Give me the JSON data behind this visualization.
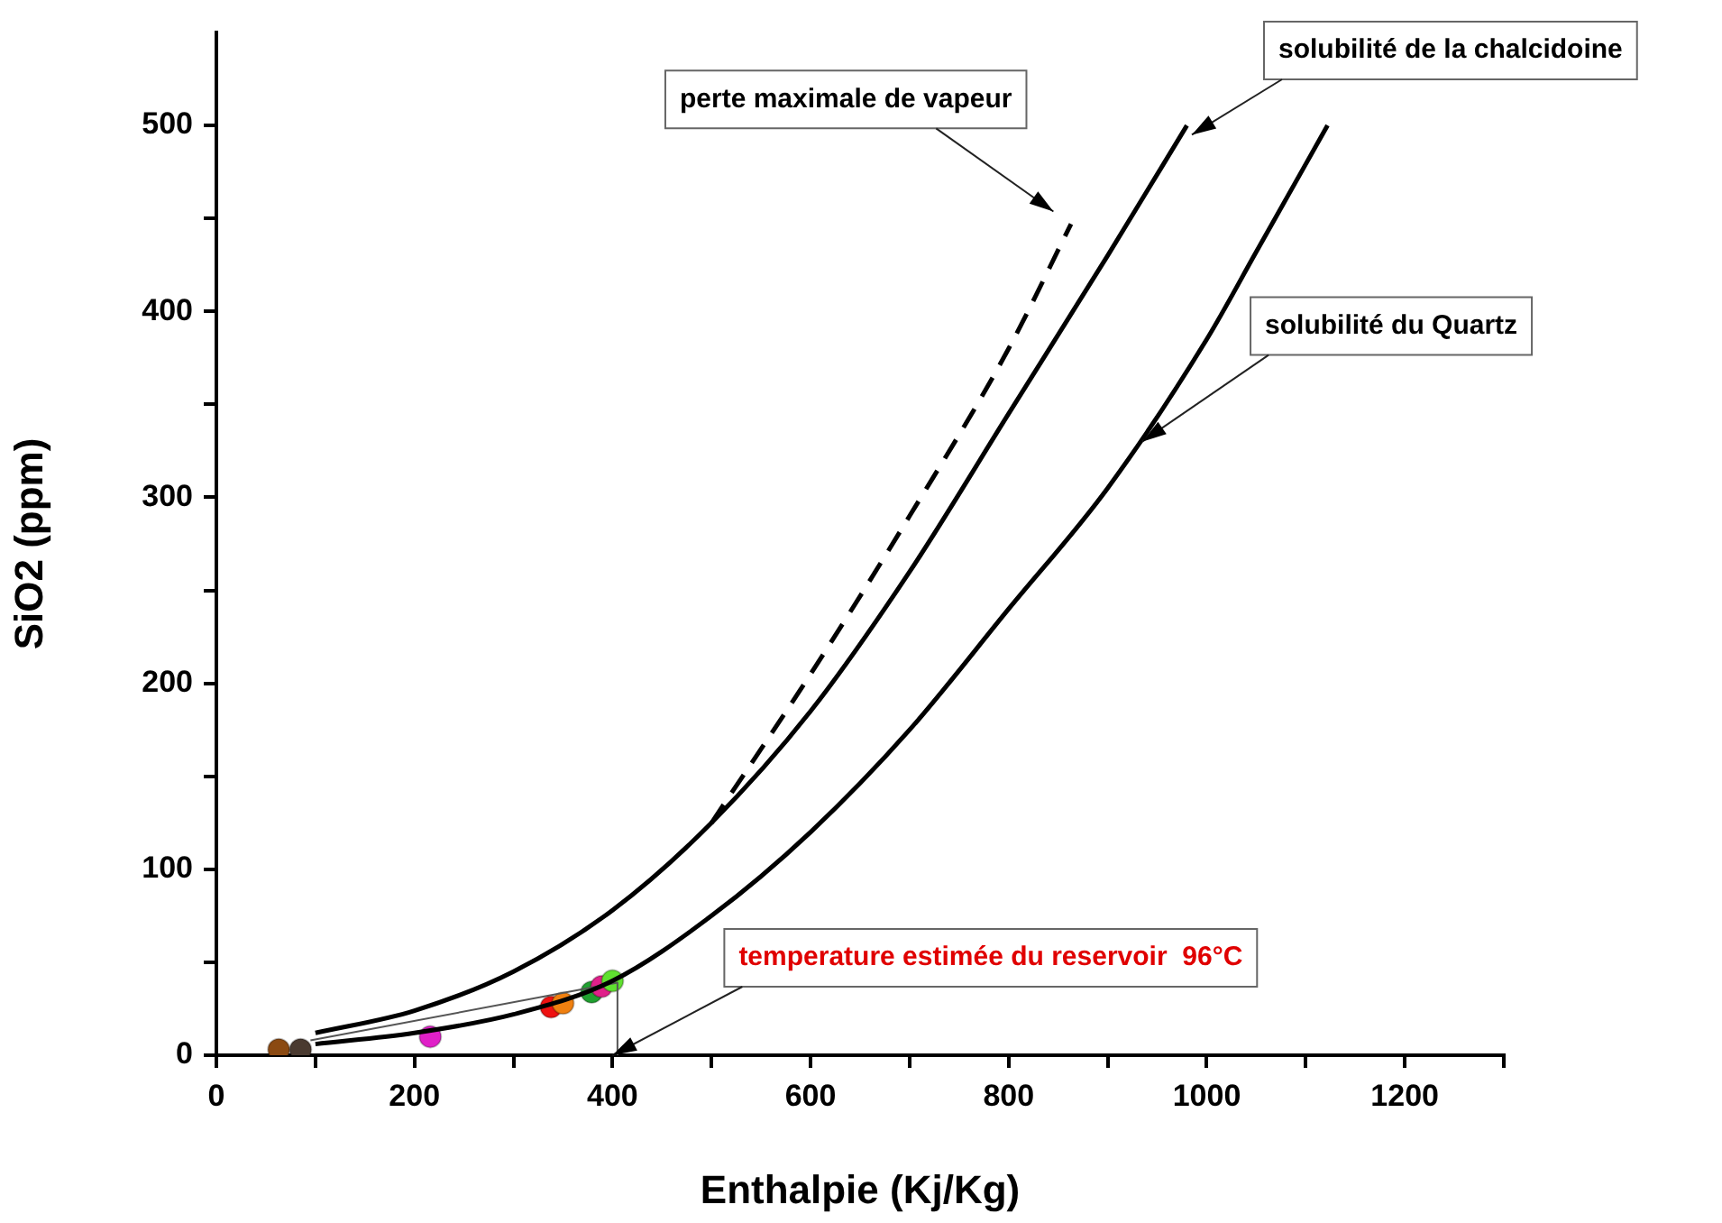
{
  "chart_data": {
    "type": "line",
    "xlabel": "Enthalpie (Kj/Kg)",
    "ylabel": "SiO2 (ppm)",
    "xlim": [
      0,
      1300
    ],
    "xticks": [
      0,
      {
        "value": 100,
        "label": null
      },
      200,
      {
        "value": 300,
        "label": null
      },
      400,
      {
        "value": 500,
        "label": null
      },
      600,
      {
        "value": 700,
        "label": null
      },
      800,
      {
        "value": 900,
        "label": null
      },
      1000,
      {
        "value": 1100,
        "label": null
      },
      1200,
      {
        "value": 1300,
        "label": null
      }
    ],
    "ylim": [
      0,
      550
    ],
    "yticks": [
      0,
      {
        "value": 50,
        "label": null
      },
      100,
      {
        "value": 150,
        "label": null
      },
      200,
      {
        "value": 250,
        "label": null
      },
      300,
      {
        "value": 350,
        "label": null
      },
      400,
      {
        "value": 450,
        "label": null
      },
      500
    ],
    "grid": false,
    "legend": false,
    "series": [
      {
        "color": "#000000",
        "line_style": "solid",
        "x": [
          100,
          200,
          300,
          400,
          500,
          600,
          700,
          800,
          900,
          980
        ],
        "values": [
          12,
          24,
          45,
          78,
          125,
          185,
          260,
          345,
          430,
          500
        ]
      },
      {
        "color": "#000000",
        "line_style": "solid",
        "x": [
          100,
          200,
          300,
          400,
          500,
          600,
          700,
          800,
          900,
          1000,
          1050,
          1122
        ],
        "values": [
          6,
          12,
          22,
          40,
          75,
          120,
          175,
          240,
          305,
          385,
          432,
          500
        ]
      },
      {
        "color": "#000000",
        "line_style": "dashed",
        "x": [
          500,
          600,
          700,
          800,
          863
        ],
        "values": [
          125,
          205,
          290,
          380,
          447
        ]
      },
      {
        "color": "#555555",
        "line_style": "solid",
        "x": [
          95,
          405,
          405
        ],
        "values": [
          8,
          39,
          0
        ]
      },
      {
        "type": "scatter",
        "marker": "circle",
        "colors": [
          "#8b4a12",
          "#4a3a30",
          "#e020c8",
          "#ee1111",
          "#f08010",
          "#20a030",
          "#e0208a",
          "#60e030"
        ],
        "x": [
          63,
          85,
          216,
          338,
          350,
          379,
          389,
          400
        ],
        "values": [
          3,
          3,
          10,
          26,
          28,
          34,
          37,
          40
        ]
      }
    ],
    "annotations": [
      {
        "text": "solubilité de la chalcidoine",
        "x": 985,
        "y": 495
      },
      "perte maximale de vapeur",
      {
        "text": "solubilité du Quartz",
        "x": 935,
        "y": 330
      },
      {
        "text": "temperature estimée du reservoir  96°C",
        "x": 400,
        "y": 0
      }
    ]
  }
}
